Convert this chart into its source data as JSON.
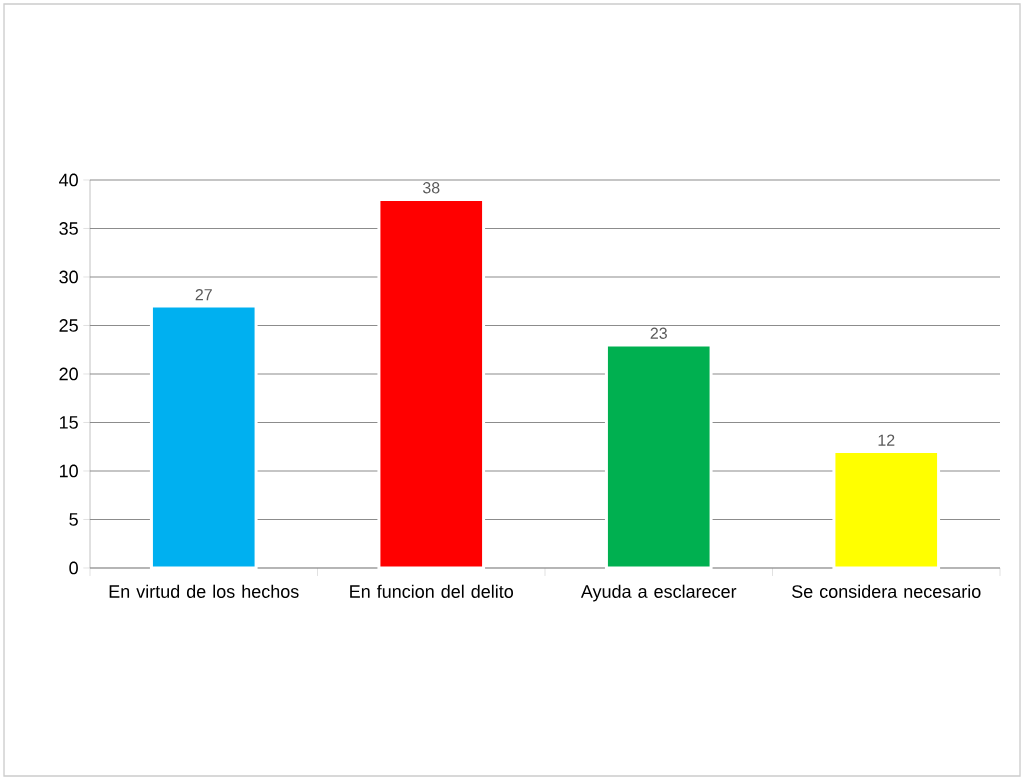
{
  "chart_data": {
    "type": "bar",
    "categories": [
      "En virtud de los hechos",
      "En funcion del delito",
      "Ayuda a esclarecer",
      "Se considera necesario"
    ],
    "values": [
      27,
      38,
      23,
      12
    ],
    "colors": [
      "#00b0f0",
      "#ff0000",
      "#00b050",
      "#ffff00"
    ],
    "ylim": [
      0,
      40
    ],
    "yticks": [
      0,
      5,
      10,
      15,
      20,
      25,
      30,
      35,
      40
    ],
    "grid": "y",
    "data_labels": true
  }
}
